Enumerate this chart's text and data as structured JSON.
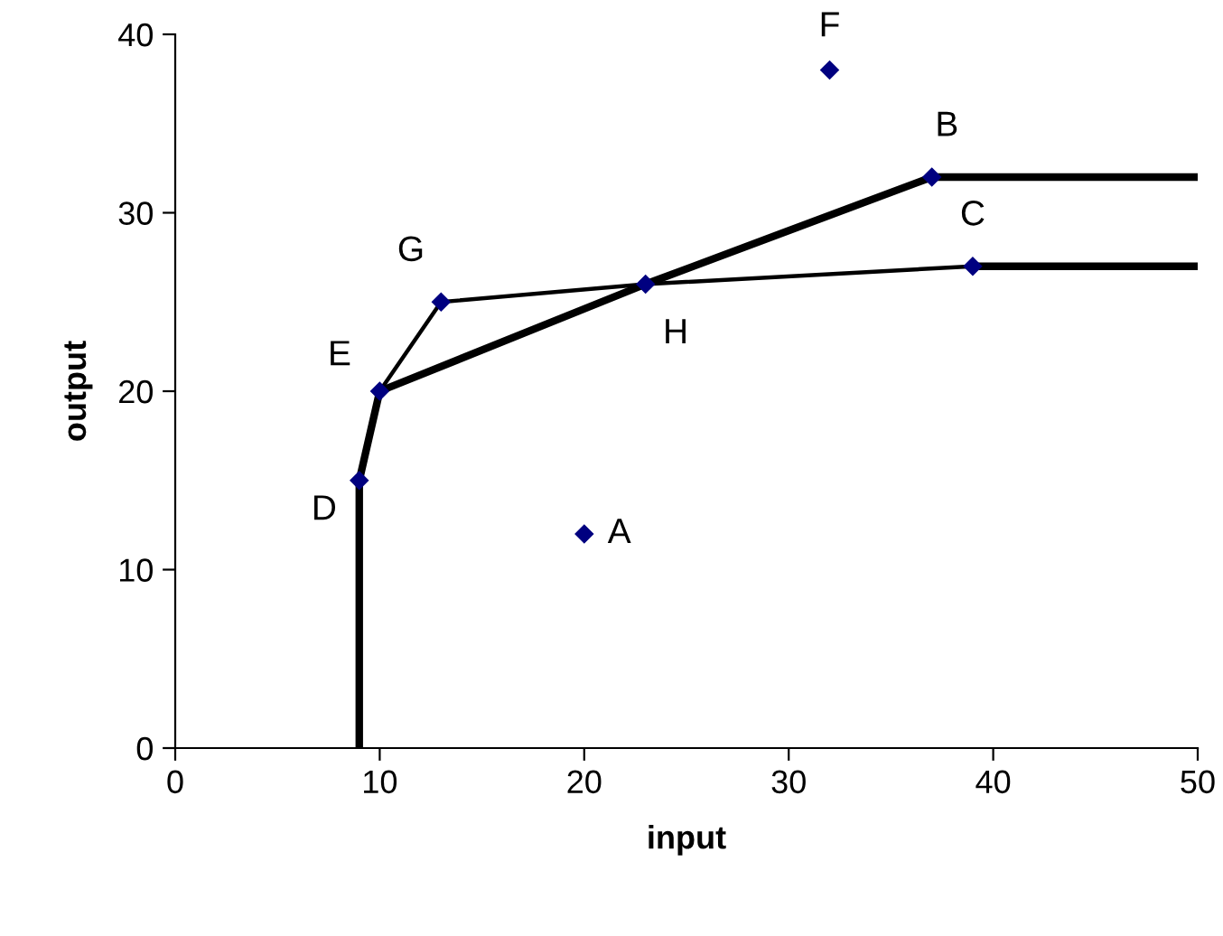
{
  "chart_data": {
    "type": "scatter",
    "xlabel": "input",
    "ylabel": "output",
    "xlim": [
      0,
      50
    ],
    "ylim": [
      0,
      40
    ],
    "xticks": [
      0,
      10,
      20,
      30,
      40,
      50
    ],
    "yticks": [
      0,
      10,
      20,
      30,
      40
    ],
    "grid": false,
    "legend": false,
    "series": [
      {
        "type": "line",
        "color": "#000000",
        "marker": "none",
        "line_style": "solid",
        "x": [
          9,
          9,
          10,
          23,
          37,
          50
        ],
        "values": [
          0,
          15,
          20,
          26,
          32,
          32
        ]
      },
      {
        "type": "line",
        "color": "#000000",
        "marker": "none",
        "line_style": "solid",
        "x": [
          10,
          13,
          23,
          39
        ],
        "values": [
          20,
          25,
          26,
          27
        ]
      },
      {
        "type": "line",
        "color": "#000000",
        "marker": "none",
        "line_style": "solid",
        "x": [
          39,
          50
        ],
        "values": [
          27,
          27
        ]
      },
      {
        "color": "#000080",
        "marker": "diamond",
        "x": [
          20,
          37,
          39,
          9,
          10,
          32,
          13,
          23
        ],
        "values": [
          12,
          32,
          27,
          15,
          20,
          38,
          25,
          26
        ]
      }
    ],
    "annotations": [
      {
        "text": "A",
        "x": 20,
        "y": 12
      },
      {
        "text": "B",
        "x": 37,
        "y": 32
      },
      {
        "text": "C",
        "x": 39,
        "y": 27
      },
      {
        "text": "D",
        "x": 9,
        "y": 15
      },
      {
        "text": "E",
        "x": 10,
        "y": 20
      },
      {
        "text": "F",
        "x": 32,
        "y": 38
      },
      {
        "text": "G",
        "x": 13,
        "y": 25
      },
      {
        "text": "H",
        "x": 23,
        "y": 26
      }
    ]
  }
}
